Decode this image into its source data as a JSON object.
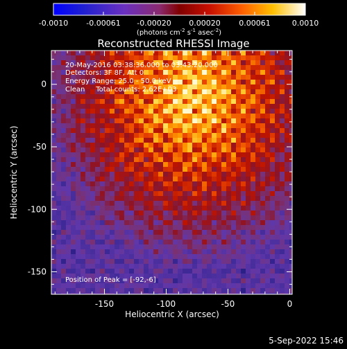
{
  "colorbar": {
    "ticks": [
      "-0.0010",
      "-0.00061",
      "-0.00020",
      "0.00020",
      "0.00061",
      "0.0010"
    ],
    "units_main": "(photons cm",
    "units_exp1": "-2",
    "units_mid": " s",
    "units_exp2": "-1",
    "units_mid2": " asec",
    "units_exp3": "-2",
    "units_end": ")"
  },
  "annotations": {
    "line1": "20-May-2016 03:38:36.000 to 03:43:20.000",
    "line2": "Detectors: 3F 8F, Att 0",
    "line3": "Energy Range: 25.0 - 50.0 keV",
    "line4": "Clean     Total counts: 2.62E+03",
    "peak": "Position of Peak = [-92,-6]"
  },
  "footer": {
    "timestamp": "5-Sep-2022 15:46"
  },
  "chart_data": {
    "type": "heatmap",
    "title": "Reconstructed RHESSI Image",
    "xlabel": "Heliocentric X (arcsec)",
    "ylabel": "Heliocentric Y (arcsec)",
    "xlim": [
      -193,
      2
    ],
    "ylim": [
      -168,
      27
    ],
    "xticks": [
      -150,
      -100,
      -50,
      0
    ],
    "yticks": [
      -150,
      -100,
      -50,
      0
    ],
    "colormap": "rhessi-blue-red-yellow-white",
    "value_range": [
      -0.001,
      0.001
    ],
    "peak_position": [
      -92,
      -6
    ],
    "colors": {
      "background": "#000000",
      "axes": "#ffffff"
    }
  }
}
